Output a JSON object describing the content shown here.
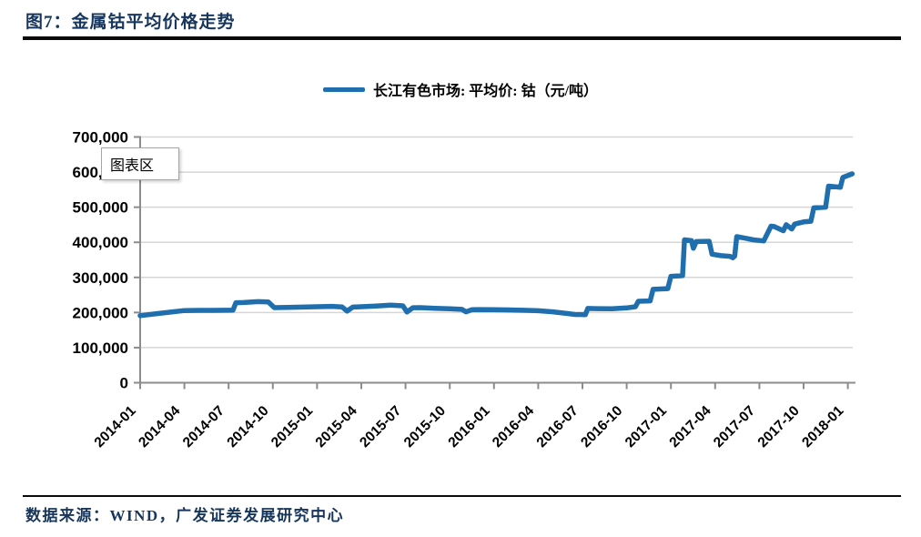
{
  "figure": {
    "title": "图7：金属钴平均价格走势",
    "source_note": "数据来源：WIND，广发证券发展研究中心"
  },
  "legend": {
    "label": "长江有色市场: 平均价: 钴（元/吨）"
  },
  "tooltip": {
    "label": "图表区"
  },
  "colors": {
    "line": "#1F6EAD",
    "title_text": "#17365D",
    "grid": "#D6D6D6",
    "axis": "#8C8C8C",
    "rule": "#0A0A0A",
    "tooltip_border": "#A6A6A6"
  },
  "chart_data": {
    "type": "line",
    "title": "图7：金属钴平均价格走势",
    "xlabel": "",
    "ylabel": "",
    "ylim": [
      0,
      700000
    ],
    "y_ticks": [
      0,
      100000,
      200000,
      300000,
      400000,
      500000,
      600000,
      700000
    ],
    "grid": true,
    "legend_position": "top",
    "x_tick_labels": [
      "2014-01",
      "2014-04",
      "2014-07",
      "2014-10",
      "2015-01",
      "2015-04",
      "2015-07",
      "2015-10",
      "2016-01",
      "2016-04",
      "2016-07",
      "2016-10",
      "2017-01",
      "2017-04",
      "2017-07",
      "2017-10",
      "2018-01"
    ],
    "series": [
      {
        "name": "长江有色市场: 平均价: 钴（元/吨）",
        "points": [
          [
            "2014-01-01",
            191000
          ],
          [
            "2014-02-01",
            196000
          ],
          [
            "2014-03-01",
            201000
          ],
          [
            "2014-04-01",
            205500
          ],
          [
            "2014-05-01",
            206000
          ],
          [
            "2014-06-01",
            206000
          ],
          [
            "2014-07-10",
            207000
          ],
          [
            "2014-07-16",
            228000
          ],
          [
            "2014-08-01",
            228500
          ],
          [
            "2014-09-01",
            231000
          ],
          [
            "2014-09-22",
            230000
          ],
          [
            "2014-10-04",
            214000
          ],
          [
            "2014-11-01",
            214500
          ],
          [
            "2014-12-01",
            215500
          ],
          [
            "2015-01-01",
            216500
          ],
          [
            "2015-02-01",
            217500
          ],
          [
            "2015-02-22",
            216000
          ],
          [
            "2015-03-02",
            204000
          ],
          [
            "2015-03-14",
            215500
          ],
          [
            "2015-04-01",
            216500
          ],
          [
            "2015-05-01",
            218500
          ],
          [
            "2015-06-01",
            221000
          ],
          [
            "2015-06-26",
            219000
          ],
          [
            "2015-07-04",
            201500
          ],
          [
            "2015-07-16",
            213500
          ],
          [
            "2015-08-01",
            214000
          ],
          [
            "2015-09-01",
            212000
          ],
          [
            "2015-10-01",
            210500
          ],
          [
            "2015-10-26",
            209000
          ],
          [
            "2015-11-04",
            202000
          ],
          [
            "2015-11-16",
            208000
          ],
          [
            "2015-12-01",
            208500
          ],
          [
            "2016-01-01",
            208000
          ],
          [
            "2016-02-01",
            207500
          ],
          [
            "2016-03-01",
            206500
          ],
          [
            "2016-04-01",
            205000
          ],
          [
            "2016-05-01",
            202000
          ],
          [
            "2016-06-01",
            197000
          ],
          [
            "2016-06-16",
            194500
          ],
          [
            "2016-07-07",
            194000
          ],
          [
            "2016-07-12",
            211500
          ],
          [
            "2016-08-01",
            211000
          ],
          [
            "2016-09-01",
            210500
          ],
          [
            "2016-10-01",
            213000
          ],
          [
            "2016-10-19",
            216500
          ],
          [
            "2016-10-25",
            232000
          ],
          [
            "2016-11-19",
            233000
          ],
          [
            "2016-11-25",
            266000
          ],
          [
            "2016-12-25",
            268000
          ],
          [
            "2017-01-01",
            303000
          ],
          [
            "2017-01-25",
            305000
          ],
          [
            "2017-01-29",
            407000
          ],
          [
            "2017-02-13",
            405000
          ],
          [
            "2017-02-17",
            383000
          ],
          [
            "2017-02-23",
            402000
          ],
          [
            "2017-03-19",
            403000
          ],
          [
            "2017-03-25",
            366000
          ],
          [
            "2017-04-13",
            362000
          ],
          [
            "2017-05-01",
            360000
          ],
          [
            "2017-05-07",
            356000
          ],
          [
            "2017-05-11",
            361000
          ],
          [
            "2017-05-15",
            416000
          ],
          [
            "2017-06-01",
            412000
          ],
          [
            "2017-06-19",
            407000
          ],
          [
            "2017-07-10",
            404000
          ],
          [
            "2017-07-25",
            446000
          ],
          [
            "2017-08-01",
            445000
          ],
          [
            "2017-08-20",
            433000
          ],
          [
            "2017-08-26",
            450000
          ],
          [
            "2017-09-07",
            438000
          ],
          [
            "2017-09-13",
            452000
          ],
          [
            "2017-10-01",
            458000
          ],
          [
            "2017-10-16",
            460000
          ],
          [
            "2017-10-22",
            498000
          ],
          [
            "2017-11-16",
            500000
          ],
          [
            "2017-11-22",
            560000
          ],
          [
            "2017-12-16",
            557000
          ],
          [
            "2017-12-21",
            585000
          ],
          [
            "2018-01-10",
            595000
          ]
        ]
      }
    ]
  }
}
